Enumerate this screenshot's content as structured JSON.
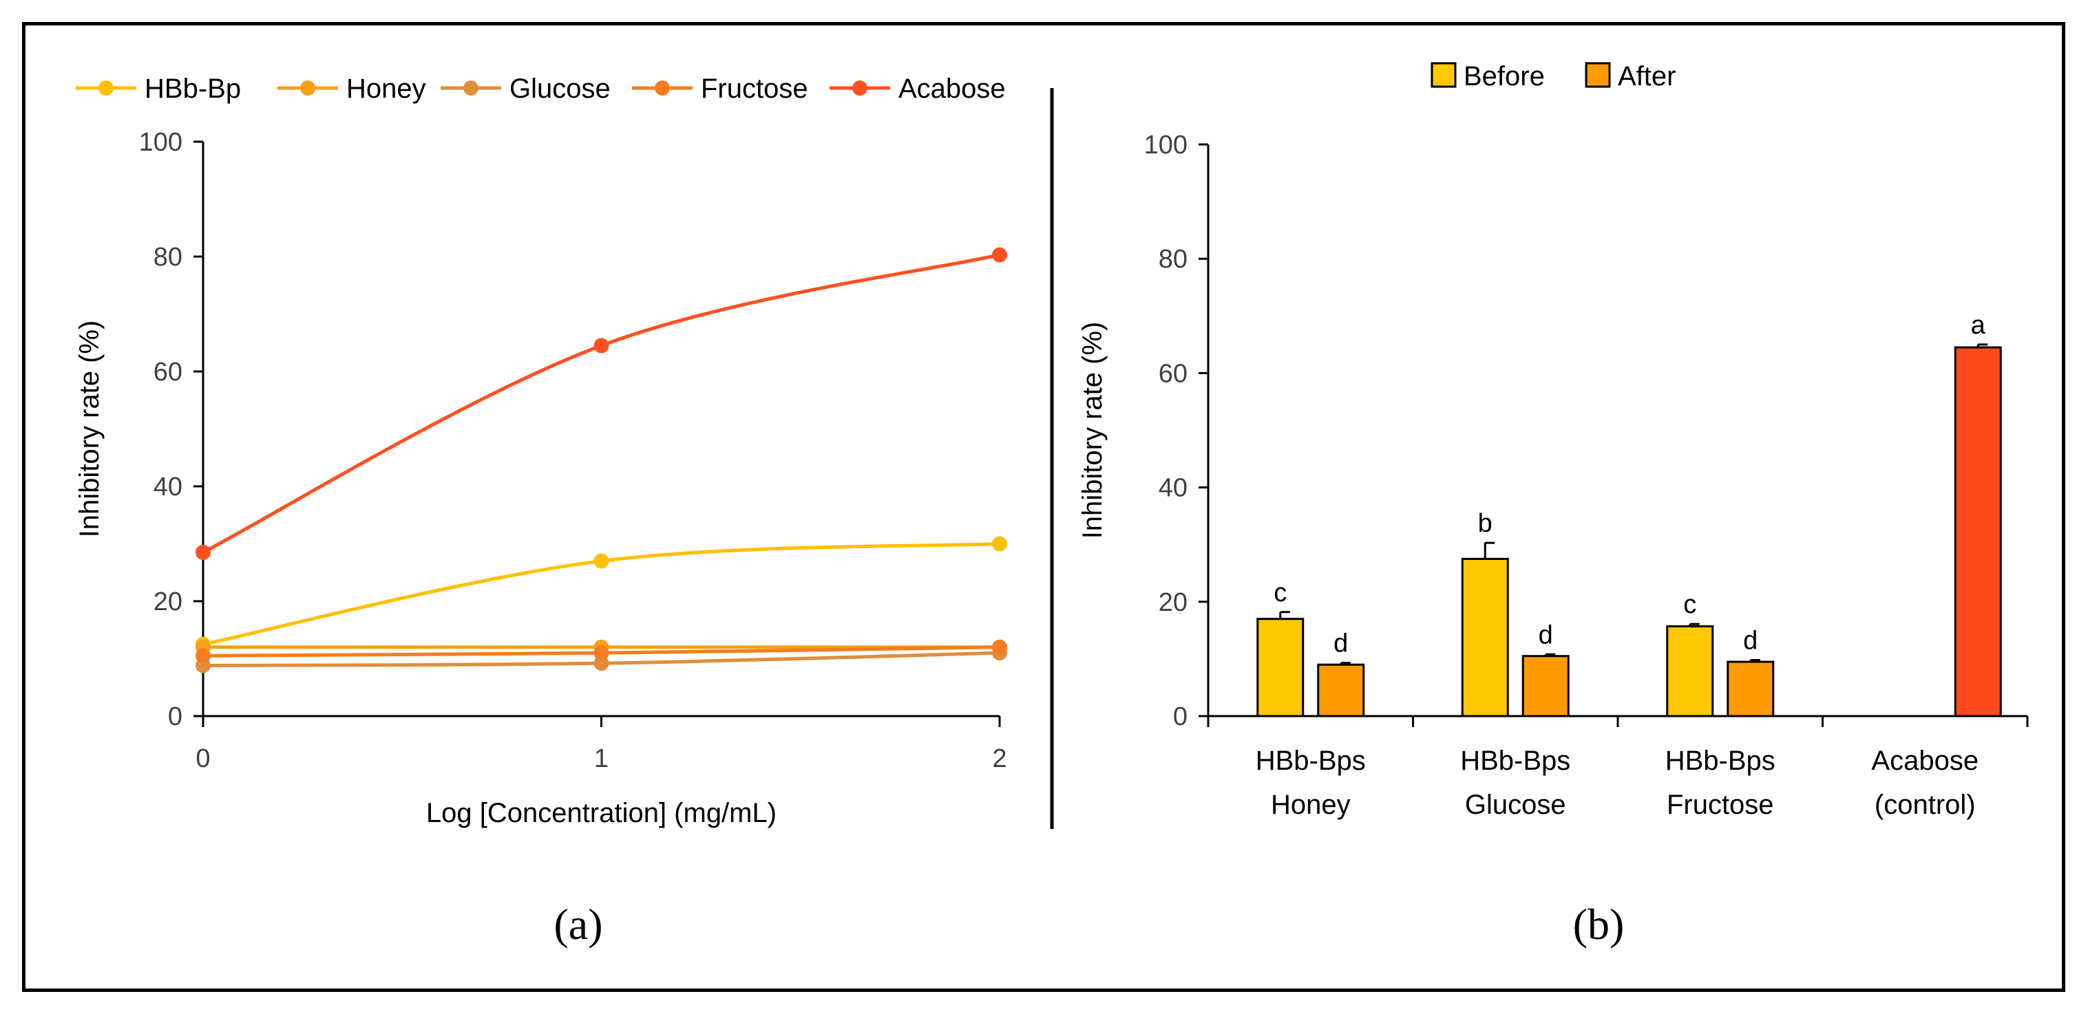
{
  "chart_data": [
    {
      "type": "line",
      "panel_label": "(a)",
      "xlabel": "Log [Concentration] (mg/mL)",
      "ylabel": "Inhibitory rate (%)",
      "x": [
        0,
        1,
        2
      ],
      "x_ticks": [
        "0",
        "1",
        "2"
      ],
      "ylim": [
        0,
        100
      ],
      "y_ticks": [
        "0",
        "20",
        "40",
        "60",
        "80",
        "100"
      ],
      "legend_position": "top",
      "series": [
        {
          "name": "HBb-Bp",
          "color": "#FFC000",
          "values": [
            12.5,
            27,
            30
          ]
        },
        {
          "name": "Honey",
          "color": "#F5A018",
          "values": [
            12,
            12,
            12
          ]
        },
        {
          "name": "Glucose",
          "color": "#E08E3C",
          "values": [
            8.8,
            9.2,
            11
          ]
        },
        {
          "name": "Fructose",
          "color": "#F57C1F",
          "values": [
            10.5,
            11,
            12
          ]
        },
        {
          "name": "Acabose",
          "color": "#FF5020",
          "values": [
            28.5,
            64.5,
            80.3
          ]
        }
      ]
    },
    {
      "type": "bar",
      "panel_label": "(b)",
      "ylabel": "Inhibitory rate (%)",
      "ylim": [
        0,
        100
      ],
      "y_ticks": [
        "0",
        "20",
        "40",
        "60",
        "80",
        "100"
      ],
      "legend_position": "top",
      "categories": [
        [
          "HBb-Bps",
          "Honey"
        ],
        [
          "HBb-Bps",
          "Glucose"
        ],
        [
          "HBb-Bps",
          "Fructose"
        ],
        [
          "Acabose",
          "(control)"
        ]
      ],
      "series": [
        {
          "name": "Before",
          "color": "#FFC800",
          "values": [
            17,
            27.5,
            15.7,
            null
          ],
          "errors": [
            1.2,
            2.8,
            0.4,
            null
          ],
          "labels": [
            "c",
            "b",
            "c",
            null
          ]
        },
        {
          "name": "After",
          "color": "#FF9A00",
          "values": [
            9,
            10.5,
            9.5,
            null
          ],
          "errors": [
            0.3,
            0.3,
            0.3,
            null
          ],
          "labels": [
            "d",
            "d",
            "d",
            null
          ]
        },
        {
          "name": "Acabose (control)",
          "color": "#FF4A1C",
          "values": [
            null,
            null,
            null,
            64.5
          ],
          "errors": [
            null,
            null,
            null,
            0.5
          ],
          "labels": [
            null,
            null,
            null,
            "a"
          ],
          "in_legend": false
        }
      ]
    }
  ]
}
